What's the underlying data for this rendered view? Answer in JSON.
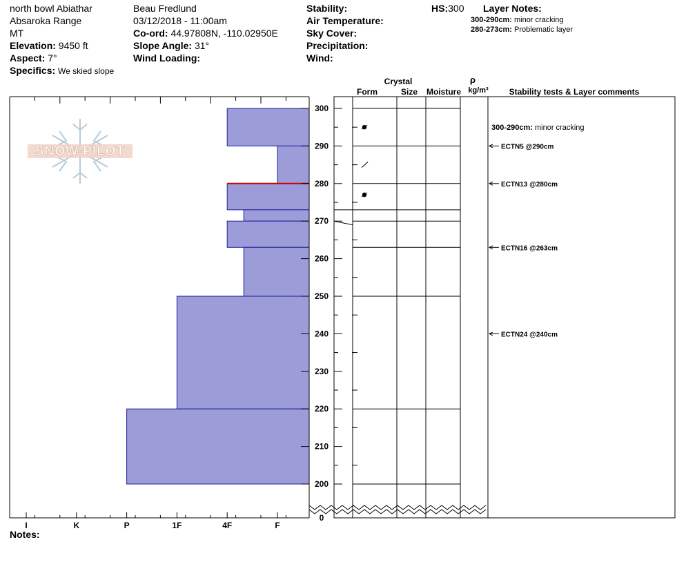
{
  "header": {
    "location": "north bowl Abiathar",
    "range": "Absaroka Range",
    "state": "MT",
    "observer": "Beau  Fredlund",
    "datetime": "03/12/2018 - 11:00am",
    "elevation_label": "Elevation:",
    "elevation_value": "9450 ft",
    "aspect_label": "Aspect:",
    "aspect_value": "7°",
    "specifics_label": "Specifics:",
    "specifics_value": "We skied slope",
    "coord_label": "Co-ord:",
    "coord_value": "44.97808N, -110.02950E",
    "slope_label": "Slope Angle:",
    "slope_value": "31°",
    "wind_loading_label": "Wind Loading:",
    "stability_label": "Stability:",
    "air_temp_label": "Air Temperature:",
    "sky_cover_label": "Sky Cover:",
    "precip_label": "Precipitation:",
    "wind_label": "Wind:",
    "hs_label": "HS:",
    "hs_value": "300",
    "layer_notes_label": "Layer Notes:",
    "layer_notes": [
      {
        "range": "300-290cm:",
        "text": "minor cracking"
      },
      {
        "range": "280-273cm:",
        "text": "Problematic layer"
      }
    ]
  },
  "logo": {
    "text": "SNOW PILOT"
  },
  "columns": {
    "crystal": "Crystal",
    "form": "Form",
    "size": "Size",
    "moisture": "Moisture",
    "rho": "ρ",
    "density_unit": "kg/m³",
    "comments": "Stability tests & Layer comments"
  },
  "footer": {
    "notes_label": "Notes:"
  },
  "colors": {
    "layer_fill": "#9c9cd8",
    "layer_stroke": "#1c1ca0",
    "weak_layer": "#cc0000"
  },
  "chart_data": {
    "type": "bar",
    "orientation": "horizontal",
    "description_free": true,
    "x_categories": [
      "I",
      "K",
      "P",
      "1F",
      "4F",
      "F"
    ],
    "y_ticks": [
      "300",
      "290",
      "280",
      "270",
      "260",
      "250",
      "240",
      "230",
      "220",
      "210",
      "200",
      "0"
    ],
    "y_break": "200-0",
    "ylim": [
      200,
      300
    ],
    "layers": [
      {
        "top": 300,
        "bottom": 290,
        "hardness": "4F"
      },
      {
        "top": 290,
        "bottom": 280,
        "hardness": "F"
      },
      {
        "top": 280,
        "bottom": 273,
        "hardness": "4F",
        "weak_top": true
      },
      {
        "top": 273,
        "bottom": 270,
        "hardness": "4F-"
      },
      {
        "top": 270,
        "bottom": 263,
        "hardness": "4F"
      },
      {
        "top": 263,
        "bottom": 250,
        "hardness": "4F-"
      },
      {
        "top": 250,
        "bottom": 220,
        "hardness": "1F"
      },
      {
        "top": 220,
        "bottom": 200,
        "hardness": "P"
      }
    ],
    "hardness_value": {
      "I": 6,
      "K": 5,
      "P": 4,
      "1F": 3,
      "4F": 2,
      "4F-": 1.67,
      "F": 1
    },
    "crystal_forms": [
      {
        "depth": 295,
        "symbol": "precipitation-particle"
      },
      {
        "depth": 285,
        "symbol": "decomposing-fragment"
      },
      {
        "depth": 277,
        "symbol": "precipitation-particle"
      }
    ],
    "tests": [
      {
        "depth": 290,
        "label": "ECTN5 @290cm"
      },
      {
        "depth": 280,
        "label": "ECTN13 @280cm"
      },
      {
        "depth": 263,
        "label": "ECTN16 @263cm"
      },
      {
        "depth": 240,
        "label": "ECTN24 @240cm"
      }
    ],
    "comment": {
      "depth": 295,
      "range": "300-290cm:",
      "text": "minor cracking"
    }
  }
}
